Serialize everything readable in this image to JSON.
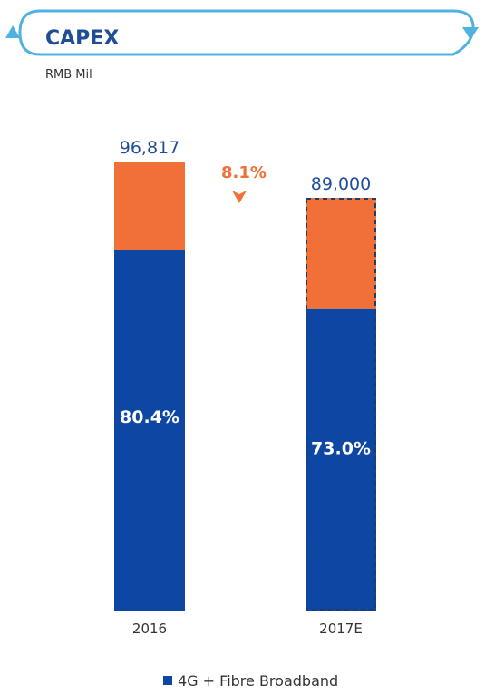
{
  "colors": {
    "accent_teal": "#4fb3e2",
    "title_blue": "#1f4e96",
    "bar_blue": "#0e46a3",
    "bar_orange": "#f07038",
    "change_orange": "#f07038",
    "text_dark": "#333333"
  },
  "chart_data": {
    "type": "bar",
    "stacked": true,
    "title": "CAPEX",
    "unit": "RMB Mil",
    "categories": [
      "2016",
      "2017E"
    ],
    "totals": [
      96817,
      89000
    ],
    "total_labels": [
      "96,817",
      "89,000"
    ],
    "series": [
      {
        "name": "4G + Fibre Broadband",
        "share": [
          0.804,
          0.73
        ],
        "values": [
          77841,
          64970
        ],
        "labels": [
          "80.4%",
          "73.0%"
        ],
        "color": "#0e46a3"
      },
      {
        "share": [
          0.196,
          0.27
        ],
        "values": [
          18976,
          24030
        ],
        "color": "#f07038"
      }
    ],
    "projected": [
      false,
      true
    ],
    "change": {
      "label": "8.1%",
      "direction": "down"
    },
    "ylim": [
      0,
      96817
    ],
    "grid": false,
    "legend": {
      "position": "bottom",
      "entries": [
        "4G + Fibre Broadband"
      ]
    }
  }
}
